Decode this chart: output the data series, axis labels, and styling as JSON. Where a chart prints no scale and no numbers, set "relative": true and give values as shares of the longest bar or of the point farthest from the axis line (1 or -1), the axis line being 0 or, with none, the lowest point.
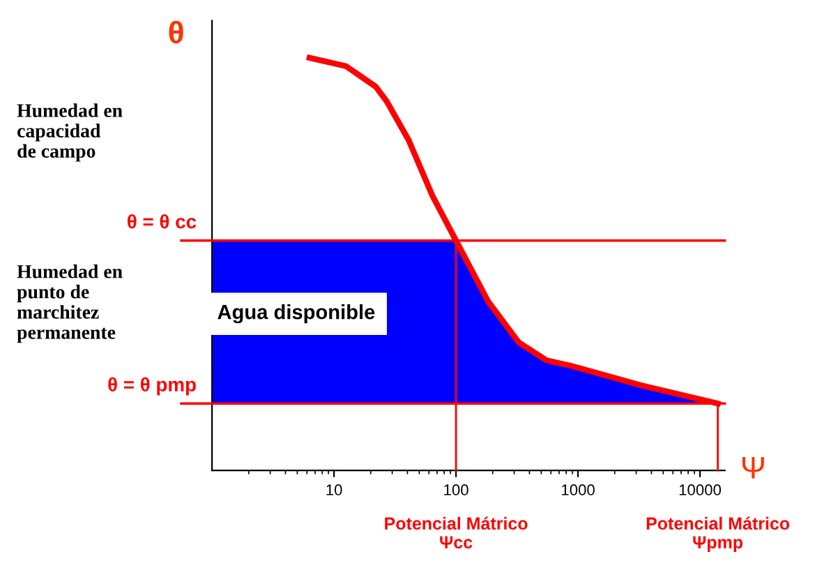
{
  "chart_data": {
    "type": "line",
    "relative": true,
    "log": "x",
    "ylabel": "θ",
    "xlabel": "Ψ",
    "x": [
      6.3,
      12.5,
      22,
      27,
      41,
      64,
      100,
      183,
      327,
      550,
      890,
      3300,
      14000
    ],
    "series": [
      {
        "color": "#ff0000",
        "values": [
          1.0,
          0.98,
          0.93,
          0.895,
          0.8,
          0.666,
          0.557,
          0.41,
          0.31,
          0.267,
          0.253,
          0.206,
          0.162
        ]
      },
      {
        "type": "area",
        "color": "#0000ff",
        "x": [
          1,
          100,
          183,
          327,
          550,
          890,
          3300,
          14000
        ],
        "values": [
          0.557,
          0.557,
          0.41,
          0.31,
          0.267,
          0.253,
          0.206,
          0.162
        ]
      }
    ],
    "xlim": [
      1,
      16000
    ],
    "xticks": [
      10,
      100,
      1000,
      10000
    ],
    "ref_lines": [
      {
        "axis": "y",
        "value": 0.557,
        "label": "θ = θ cc",
        "color": "#ff0000"
      },
      {
        "axis": "y",
        "value": 0.162,
        "label": "θ = θ pmp",
        "color": "#ff0000"
      },
      {
        "axis": "x",
        "value": 100,
        "label": "Potencial Mátrico\nΨcc",
        "color": "#ff0000"
      },
      {
        "axis": "x",
        "value": 14000,
        "label": "Potencial Mátrico\nΨpmp",
        "color": "#ff0000"
      }
    ],
    "annotations": [
      "Humedad en\ncapacidad\nde campo",
      "Humedad en\npunto de\nmarchitez\npermanente",
      "Agua disponible"
    ],
    "grid": false
  }
}
